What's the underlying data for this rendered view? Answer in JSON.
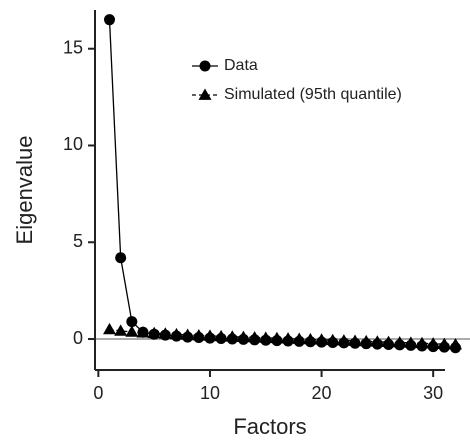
{
  "chart_data": {
    "type": "line",
    "x_label": "Factors",
    "y_label": "Eigenvalue",
    "x": [
      1,
      2,
      3,
      4,
      5,
      6,
      7,
      8,
      9,
      10,
      11,
      12,
      13,
      14,
      15,
      16,
      17,
      18,
      19,
      20,
      21,
      22,
      23,
      24,
      25,
      26,
      27,
      28,
      29,
      30,
      31,
      32
    ],
    "series": [
      {
        "name": "Data",
        "color": "#000000",
        "marker": "circle",
        "dashed": false,
        "values": [
          16.5,
          4.2,
          0.9,
          0.35,
          0.25,
          0.2,
          0.15,
          0.1,
          0.08,
          0.05,
          0.03,
          0.0,
          -0.02,
          -0.04,
          -0.06,
          -0.08,
          -0.1,
          -0.12,
          -0.14,
          -0.16,
          -0.18,
          -0.2,
          -0.22,
          -0.24,
          -0.26,
          -0.28,
          -0.3,
          -0.33,
          -0.36,
          -0.39,
          -0.42,
          -0.45
        ]
      },
      {
        "name": "Simulated (95th quantile)",
        "color": "#000000",
        "marker": "triangle",
        "dashed": true,
        "values": [
          0.5,
          0.42,
          0.37,
          0.33,
          0.3,
          0.27,
          0.24,
          0.21,
          0.18,
          0.16,
          0.14,
          0.12,
          0.1,
          0.08,
          0.06,
          0.04,
          0.02,
          0.0,
          -0.02,
          -0.04,
          -0.06,
          -0.08,
          -0.1,
          -0.12,
          -0.14,
          -0.16,
          -0.18,
          -0.2,
          -0.22,
          -0.24,
          -0.26,
          -0.28
        ]
      }
    ],
    "xlim": [
      -0.3,
      33.3
    ],
    "ylim": [
      -1.6,
      17
    ],
    "xticks": [
      0,
      10,
      20,
      30
    ],
    "yticks": [
      0,
      5,
      10,
      15
    ],
    "reference_line": 0,
    "legend": "top-right",
    "grid": false
  }
}
